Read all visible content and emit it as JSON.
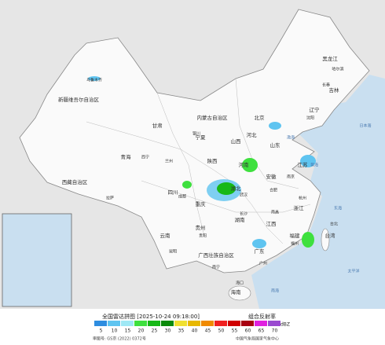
{
  "header": {
    "title": "全国雷达拼图 [2025-10-24 09:18:00]",
    "product": "组合反射率",
    "unit": "dBZ"
  },
  "legend": {
    "values": [
      5,
      10,
      15,
      20,
      25,
      30,
      35,
      40,
      45,
      50,
      55,
      60,
      65,
      70
    ],
    "colors": [
      "#2e8de0",
      "#5fc4f0",
      "#9ee8f5",
      "#3ee03e",
      "#17b817",
      "#0a8a0a",
      "#f0e030",
      "#e8b800",
      "#f08a00",
      "#f02020",
      "#d00000",
      "#a80010",
      "#e020e0",
      "#9a4ad0"
    ]
  },
  "labels": [
    "新疆维吾尔自治区",
    "西藏自治区",
    "青海",
    "甘肃",
    "内蒙古自治区",
    "黑龙江",
    "吉林",
    "辽宁",
    "北京",
    "河北",
    "山西",
    "山东",
    "河南",
    "陕西",
    "宁夏",
    "四川",
    "重庆",
    "湖北",
    "安徽",
    "江苏",
    "浙江",
    "江西",
    "湖南",
    "贵州",
    "云南",
    "广西壮族自治区",
    "广东",
    "福建",
    "台湾",
    "海南",
    "乌鲁木齐",
    "拉萨",
    "西宁",
    "兰州",
    "银川",
    "哈尔滨",
    "长春",
    "沈阳",
    "成都",
    "武汉",
    "合肥",
    "南京",
    "杭州",
    "南昌",
    "长沙",
    "贵阳",
    "昆明",
    "南宁",
    "广州",
    "福州",
    "台北",
    "海口",
    "渤海",
    "黄海",
    "东海",
    "南海",
    "太平洋",
    "日本海"
  ],
  "footer": {
    "approval": "审图号: GS京 (2022) 0372号",
    "source": "中国气象局国家气象中心"
  }
}
